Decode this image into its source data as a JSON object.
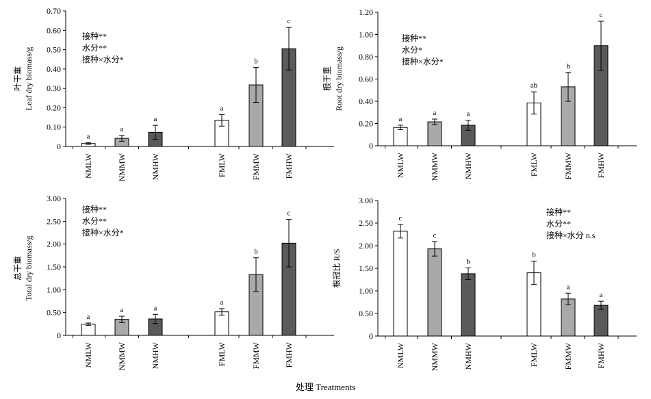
{
  "x_axis_title": "处理 Treatments",
  "colors": {
    "NM": "#ffffff",
    "MM": "#a9a9a9",
    "HW": "#5a5a5a",
    "FM": "#ffffff"
  },
  "chart_data": [
    {
      "type": "bar",
      "ylabel_cn": "叶干重",
      "ylabel": "Leaf dry biomass/g",
      "ylim": [
        0,
        0.7
      ],
      "ytick_labels": [
        "0",
        "0.10",
        "0.20",
        "0.30",
        "0.40",
        "0.50",
        "0.60",
        "0.70"
      ],
      "categories": [
        "NMLW",
        "NMMW",
        "NMHW",
        "FMLW",
        "FMMW",
        "FMHW"
      ],
      "values": [
        0.015,
        0.042,
        0.073,
        0.135,
        0.318,
        0.505
      ],
      "errors": [
        0.004,
        0.015,
        0.036,
        0.03,
        0.09,
        0.11
      ],
      "letters": [
        "a",
        "a",
        "a",
        "a",
        "b",
        "c"
      ],
      "annotations": [
        "接种**",
        "水分**",
        "接种×水分*"
      ]
    },
    {
      "type": "bar",
      "ylabel_cn": "根干重",
      "ylabel": "Root dry biomass/g",
      "ylim": [
        0,
        1.2
      ],
      "ytick_labels": [
        "0",
        "0.20",
        "0.40",
        "0.60",
        "0.80",
        "1.00",
        "1.20"
      ],
      "categories": [
        "NMLW",
        "NMMW",
        "NMHW",
        "FMLW",
        "FMMW",
        "FMHW"
      ],
      "values": [
        0.165,
        0.215,
        0.185,
        0.385,
        0.53,
        0.9
      ],
      "errors": [
        0.02,
        0.025,
        0.045,
        0.1,
        0.13,
        0.22
      ],
      "letters": [
        "a",
        "a",
        "a",
        "ab",
        "b",
        "c"
      ],
      "annotations": [
        "接种**",
        "水分*",
        "接种×水分*"
      ]
    },
    {
      "type": "bar",
      "ylabel_cn": "总干重",
      "ylabel": "Total dry biomass/g",
      "ylim": [
        0,
        3.0
      ],
      "ytick_labels": [
        "0",
        "0.50",
        "1.00",
        "1.50",
        "2.00",
        "2.50",
        "3.00"
      ],
      "categories": [
        "NMLW",
        "NMMW",
        "NMHW",
        "FMLW",
        "FMMW",
        "FMHW"
      ],
      "values": [
        0.245,
        0.35,
        0.36,
        0.515,
        1.33,
        2.02
      ],
      "errors": [
        0.025,
        0.07,
        0.1,
        0.07,
        0.37,
        0.52
      ],
      "letters": [
        "a",
        "a",
        "a",
        "a",
        "b",
        "c"
      ],
      "annotations": [
        "接种**",
        "水分**",
        "接种×水分*"
      ]
    },
    {
      "type": "bar",
      "ylabel_cn": "根冠比",
      "ylabel": "R/S",
      "ylim": [
        0,
        3.0
      ],
      "ytick_labels": [
        "0",
        "0.50",
        "1.00",
        "1.50",
        "2.00",
        "2.50",
        "3.00"
      ],
      "categories": [
        "NMLW",
        "NMMW",
        "NMHW",
        "FMLW",
        "FMMW",
        "FMHW"
      ],
      "values": [
        2.32,
        1.93,
        1.38,
        1.4,
        0.82,
        0.68
      ],
      "errors": [
        0.15,
        0.16,
        0.13,
        0.26,
        0.13,
        0.09
      ],
      "letters": [
        "c",
        "c",
        "b",
        "b",
        "a",
        "a"
      ],
      "annotations": [
        "接种**",
        "水分**",
        "接种×水分 n.s"
      ]
    }
  ]
}
